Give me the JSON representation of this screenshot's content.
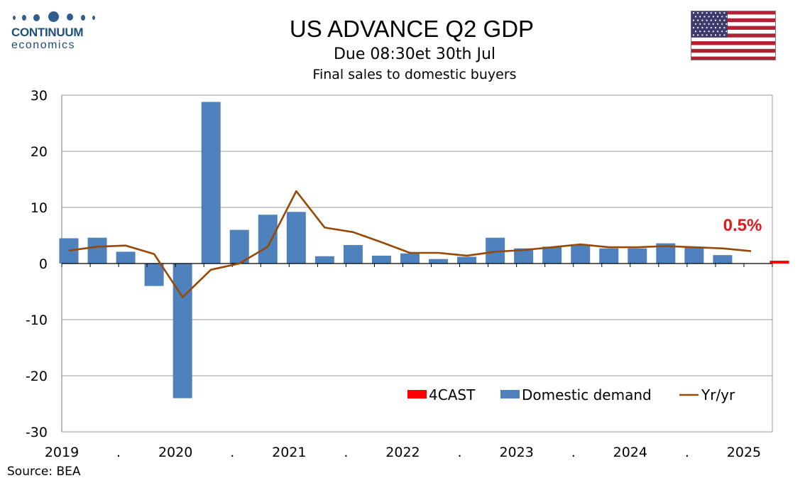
{
  "logo": {
    "word": "CONTINUUM",
    "sub": "economics"
  },
  "header": {
    "title": "US ADVANCE Q2  GDP",
    "subtitle": "Due 08:30et 30th Jul",
    "subtitle2": "Final sales to domestic buyers"
  },
  "flag": {
    "name": "us-flag-icon"
  },
  "source": "Source: BEA",
  "chart_data": {
    "type": "bar",
    "title": "Final sales to domestic buyers",
    "ylim": [
      -30,
      30
    ],
    "yticks": [
      30,
      20,
      10,
      0,
      -10,
      -20,
      -30
    ],
    "grid": true,
    "legend_position": "bottom-right",
    "x_tick_labels": [
      "2019",
      ".",
      "2020",
      ".",
      "2021",
      ".",
      "2022",
      ".",
      "2023",
      ".",
      "2024",
      ".",
      "2025"
    ],
    "categories": [
      "2019Q1",
      "2019Q2",
      "2019Q3",
      "2019Q4",
      "2020Q1",
      "2020Q2",
      "2020Q3",
      "2020Q4",
      "2021Q1",
      "2021Q2",
      "2021Q3",
      "2021Q4",
      "2022Q1",
      "2022Q2",
      "2022Q3",
      "2022Q4",
      "2023Q1",
      "2023Q2",
      "2023Q3",
      "2023Q4",
      "2024Q1",
      "2024Q2",
      "2024Q3",
      "2024Q4",
      "2025Q1",
      "2025Q2"
    ],
    "series": [
      {
        "name": "4CAST",
        "kind": "bar",
        "color": "#ff0000",
        "values": [
          null,
          null,
          null,
          null,
          null,
          null,
          null,
          null,
          null,
          null,
          null,
          null,
          null,
          null,
          null,
          null,
          null,
          null,
          null,
          null,
          null,
          null,
          null,
          null,
          null,
          0.5
        ]
      },
      {
        "name": "Domestic demand",
        "kind": "bar",
        "color": "#4f81bd",
        "values": [
          4.5,
          4.6,
          2.1,
          -4.0,
          -24.0,
          28.8,
          6.0,
          8.7,
          9.2,
          1.3,
          3.3,
          1.4,
          1.8,
          0.8,
          1.2,
          4.6,
          2.7,
          3.0,
          3.3,
          2.7,
          2.7,
          3.6,
          2.9,
          1.5,
          null,
          null
        ]
      },
      {
        "name": "Yr/yr",
        "kind": "line",
        "color": "#984807",
        "values": [
          2.3,
          3.0,
          3.2,
          1.7,
          -6.0,
          -1.1,
          0.0,
          3.0,
          12.9,
          6.4,
          5.6,
          3.8,
          1.9,
          1.9,
          1.4,
          2.1,
          2.4,
          2.9,
          3.4,
          2.9,
          2.9,
          3.1,
          2.9,
          2.7,
          2.2,
          null
        ]
      }
    ],
    "annotations": [
      {
        "text": "0.5%",
        "color": "#e31a1c"
      }
    ]
  }
}
